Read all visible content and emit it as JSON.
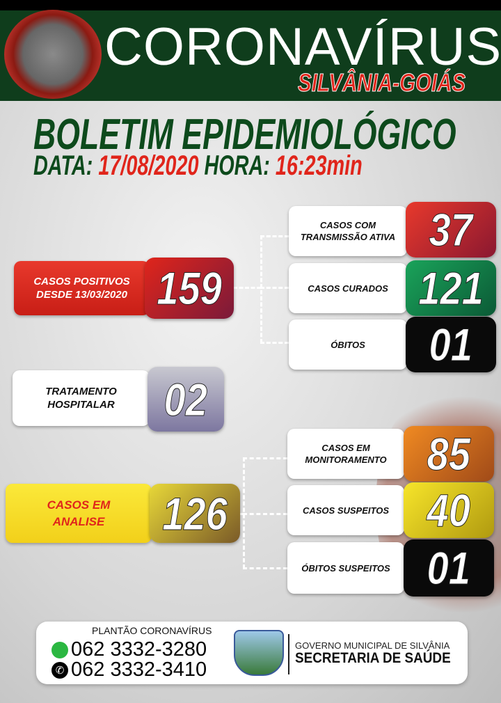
{
  "header": {
    "title": "CORONAVÍRUS",
    "subtitle": "SILVÂNIA-GOIÁS"
  },
  "bulletin": {
    "title": "BOLETIM EPIDEMIOLÓGICO",
    "date_label": "DATA:",
    "date": "17/08/2020",
    "time_label": "HORA:",
    "time": "16:23min"
  },
  "stats": {
    "positive": {
      "label_1": "CASOS POSITIVOS",
      "label_2": "DESDE 13/03/2020",
      "value": "159"
    },
    "active": {
      "label_1": "CASOS COM",
      "label_2": "TRANSMISSÃO ATIVA",
      "value": "37"
    },
    "recovered": {
      "label": "CASOS CURADOS",
      "value": "121"
    },
    "deaths": {
      "label": "ÓBITOS",
      "value": "01"
    },
    "hospital": {
      "label_1": "TRATAMENTO",
      "label_2": "HOSPITALAR",
      "value": "02"
    },
    "analysis": {
      "label_1": "CASOS EM",
      "label_2": "ANALISE",
      "value": "126"
    },
    "monitoring": {
      "label_1": "CASOS EM",
      "label_2": "MONITORAMENTO",
      "value": "85"
    },
    "suspected": {
      "label": "CASOS SUSPEITOS",
      "value": "40"
    },
    "suspected_deaths": {
      "label": "ÓBITOS SUSPEITOS",
      "value": "01"
    }
  },
  "footer": {
    "hotline_label": "PLANTÃO CORONAVÍRUS",
    "whatsapp": "062 3332-3280",
    "phone": "062 3332-3410",
    "gov": "GOVERNO MUNICIPAL DE SILVÂNIA",
    "dept": "SECRETARIA DE SAÚDE"
  },
  "colors": {
    "header_green": "#0f3d1c",
    "red": "#e0251b",
    "green": "#0e8a4a",
    "black": "#111111",
    "orange": "#e8701c",
    "yellow": "#f2dc1e",
    "gray": "#8a86a8"
  }
}
